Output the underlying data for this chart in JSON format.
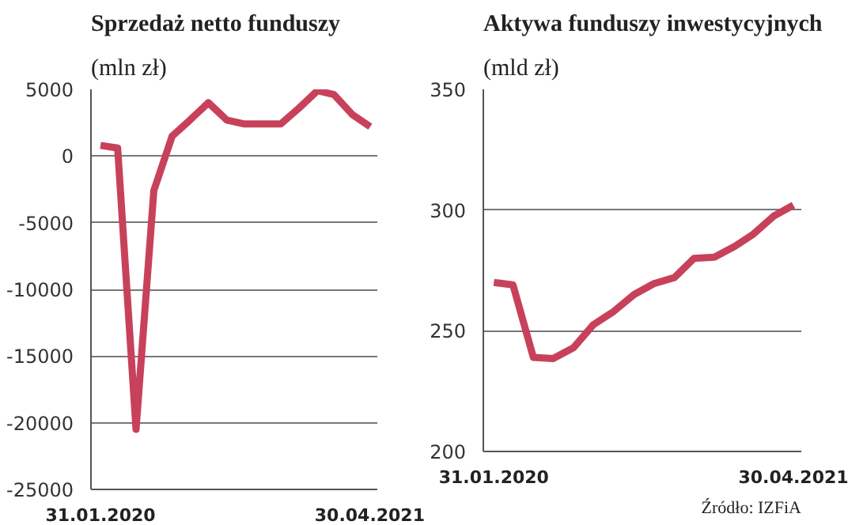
{
  "chart_data": [
    {
      "type": "line",
      "title": "Sprzedaż netto funduszy",
      "subtitle": "(mln zł)",
      "x": [
        "2020-01-31",
        "2020-02-29",
        "2020-03-31",
        "2020-04-30",
        "2020-05-31",
        "2020-06-30",
        "2020-07-31",
        "2020-08-31",
        "2020-09-30",
        "2020-10-31",
        "2020-11-30",
        "2020-12-31",
        "2021-01-31",
        "2021-02-28",
        "2021-03-31",
        "2021-04-30"
      ],
      "series": [
        {
          "color": "#c8415a",
          "values": [
            800,
            600,
            -20500,
            -2600,
            1500,
            2700,
            4000,
            2700,
            2400,
            2400,
            2400,
            3600,
            4900,
            4600,
            3100,
            2200
          ]
        }
      ],
      "xlim": [
        "2020-01-15",
        "2021-05-12"
      ],
      "xticks": [
        {
          "value": "2020-01-31",
          "label": "31.01.2020"
        },
        {
          "value": "2021-04-30",
          "label": "30.04.2021"
        }
      ],
      "ylim": [
        -25000,
        5000
      ],
      "yticks": [
        -25000,
        -20000,
        -15000,
        -10000,
        -5000,
        0,
        5000
      ],
      "grid": "y",
      "marker": "none",
      "line_style": "solid"
    },
    {
      "type": "line",
      "title": "Aktywa funduszy inwestycyjnych",
      "subtitle": "(mld zł)",
      "x": [
        "2020-01-31",
        "2020-02-29",
        "2020-03-31",
        "2020-04-30",
        "2020-05-31",
        "2020-06-30",
        "2020-07-31",
        "2020-08-31",
        "2020-09-30",
        "2020-10-31",
        "2020-11-30",
        "2020-12-31",
        "2021-01-31",
        "2021-02-28",
        "2021-03-31",
        "2021-04-30"
      ],
      "series": [
        {
          "color": "#c8415a",
          "values": [
            270,
            269,
            239,
            238.5,
            243,
            252.5,
            258,
            265,
            269.5,
            272,
            280,
            280.5,
            285,
            290,
            297.5,
            302
          ]
        }
      ],
      "xlim": [
        "2020-01-15",
        "2021-05-12"
      ],
      "xticks": [
        {
          "value": "2020-01-31",
          "label": "31.01.2020"
        },
        {
          "value": "2021-04-30",
          "label": "30.04.2021"
        }
      ],
      "ylim": [
        200,
        350
      ],
      "yticks": [
        200,
        250,
        300,
        350
      ],
      "grid": "y",
      "marker": "none",
      "line_style": "solid",
      "annotations": [
        "Źródło: IZFiA"
      ]
    }
  ]
}
